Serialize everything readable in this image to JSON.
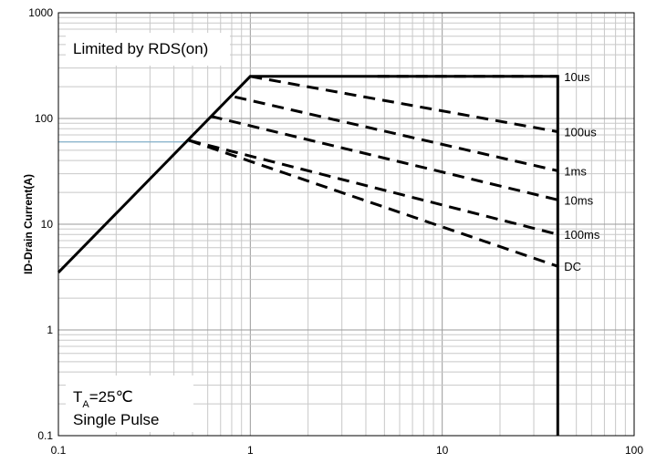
{
  "chart_data": {
    "type": "line",
    "title": "",
    "xlabel": "",
    "ylabel": "ID-Drain Current(A)",
    "xscale": "log",
    "yscale": "log",
    "xlim": [
      0.1,
      100
    ],
    "ylim": [
      0.1,
      1000
    ],
    "grid": true,
    "x_ticks": [
      0.1,
      1,
      10,
      100
    ],
    "x_tick_labels": [
      "0.1",
      "1",
      "10",
      "100"
    ],
    "y_ticks": [
      0.1,
      1,
      10,
      100,
      1000
    ],
    "y_tick_labels": [
      "0.1",
      "1",
      "10",
      "100",
      "1000"
    ],
    "annotations": {
      "limit_text": "Limited by RDS(on)",
      "temp_prefix": "T",
      "temp_subscript": "A",
      "temp_value": "=25℃",
      "pulse_text": "Single Pulse"
    },
    "series": [
      {
        "name": "",
        "style": "solid",
        "x": [
          0.1,
          1,
          40,
          40
        ],
        "y": [
          3.5,
          250,
          250,
          0.1
        ]
      },
      {
        "name": "10us",
        "style": "dashed",
        "label": "10us",
        "x": [
          4.6,
          40
        ],
        "y": [
          250,
          250
        ]
      },
      {
        "name": "100us",
        "style": "dashed",
        "label": "100us",
        "x": [
          1,
          40
        ],
        "y": [
          250,
          75
        ]
      },
      {
        "name": "1ms",
        "style": "dashed",
        "label": "1ms",
        "x": [
          0.83,
          40
        ],
        "y": [
          160,
          32
        ]
      },
      {
        "name": "10ms",
        "style": "dashed",
        "label": "10ms",
        "x": [
          0.62,
          40
        ],
        "y": [
          105,
          17
        ]
      },
      {
        "name": "100ms",
        "style": "dashed",
        "label": "100ms",
        "x": [
          0.48,
          40
        ],
        "y": [
          62,
          8
        ]
      },
      {
        "name": "DC",
        "style": "dashed",
        "label": "DC",
        "x": [
          0.48,
          40
        ],
        "y": [
          62,
          4
        ]
      }
    ],
    "reference_lines": [
      {
        "axis": "y",
        "value": 60,
        "x": [
          0.1,
          0.48
        ],
        "color": "#6fa8c8"
      }
    ]
  }
}
